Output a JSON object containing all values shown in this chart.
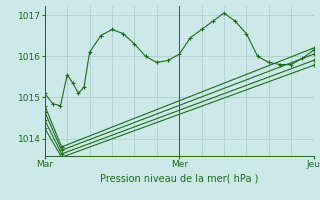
{
  "xlabel": "Pression niveau de la mer( hPa )",
  "bg_color": "#cce8e8",
  "grid_color": "#aacccc",
  "line_color": "#1a6e1a",
  "xlim": [
    0,
    48
  ],
  "ylim": [
    1013.58,
    1017.22
  ],
  "yticks": [
    1014,
    1015,
    1016,
    1017
  ],
  "xtick_positions": [
    0,
    24,
    48
  ],
  "xtick_labels": [
    "Mar",
    "Mer",
    "Jeu"
  ],
  "series0_x": [
    0,
    1.4,
    2.8,
    4,
    5,
    6,
    7,
    8,
    10,
    12,
    14,
    16,
    18,
    20,
    22,
    24,
    26,
    28,
    30,
    32,
    34,
    36,
    38,
    40,
    42,
    44,
    46,
    48
  ],
  "series0_y": [
    1015.1,
    1014.85,
    1014.8,
    1015.55,
    1015.35,
    1015.1,
    1015.25,
    1016.1,
    1016.5,
    1016.65,
    1016.55,
    1016.3,
    1016.0,
    1015.85,
    1015.9,
    1016.05,
    1016.45,
    1016.65,
    1016.85,
    1017.05,
    1016.85,
    1016.55,
    1016.0,
    1015.85,
    1015.8,
    1015.8,
    1015.95,
    1016.15
  ],
  "series1_x": [
    0,
    3,
    48
  ],
  "series1_y": [
    1014.8,
    1013.8,
    1016.2
  ],
  "series2_x": [
    0,
    3,
    48
  ],
  "series2_y": [
    1014.65,
    1013.72,
    1016.05
  ],
  "series3_x": [
    0,
    3,
    48
  ],
  "series3_y": [
    1014.45,
    1013.63,
    1015.9
  ],
  "series4_x": [
    0,
    3,
    48
  ],
  "series4_y": [
    1014.25,
    1013.55,
    1015.78
  ]
}
